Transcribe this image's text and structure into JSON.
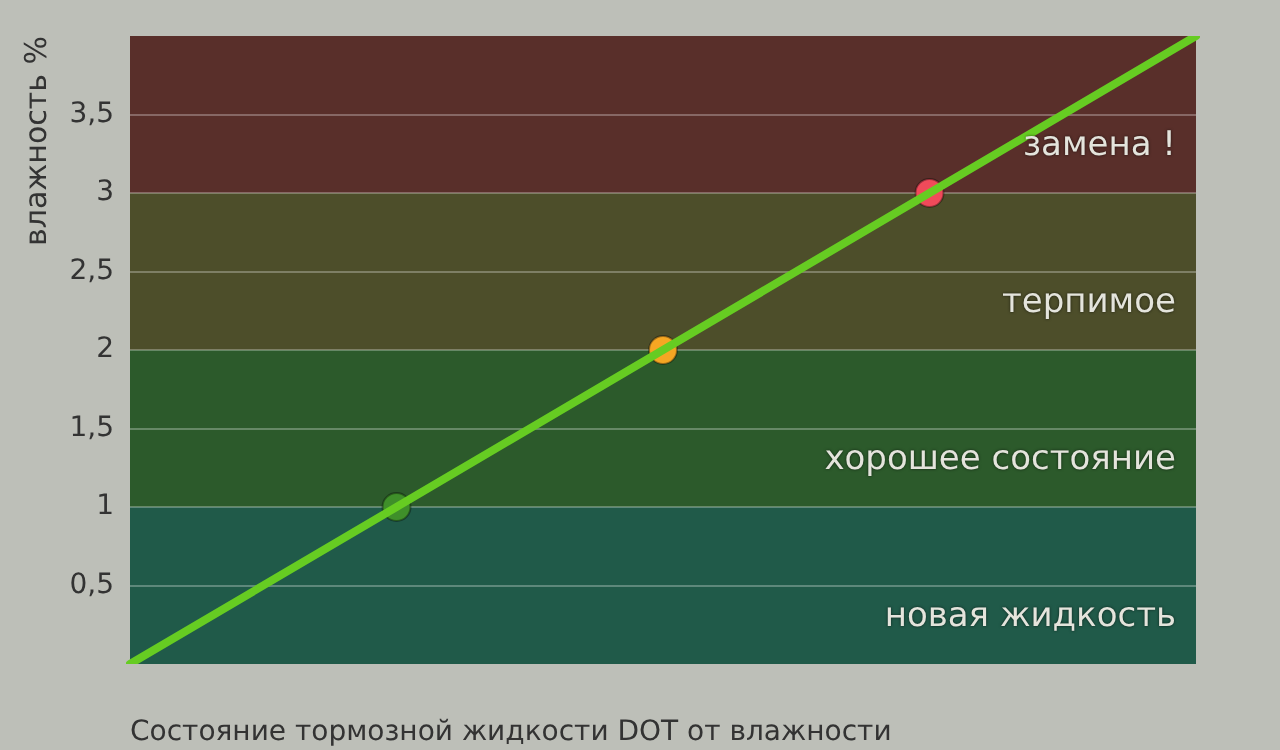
{
  "chart_data": {
    "type": "line",
    "xlabel": "Состояние тормозной жидкости DOT от влажности",
    "ylabel": "влажность %",
    "categories": [
      null,
      null,
      null,
      null,
      null
    ],
    "series": [
      {
        "color": "#66cc22",
        "values": [
          0,
          1,
          2,
          3,
          4
        ],
        "marker": "none"
      },
      {
        "type": "scatter",
        "colors": [
          null,
          "#3f8f2a",
          "#f5a623",
          "#f04a5a",
          null
        ],
        "values": [
          null,
          1,
          2,
          3,
          null
        ],
        "marker": "circle"
      }
    ],
    "ylim": [
      0,
      4
    ],
    "yticks": [
      {
        "value": 0.5,
        "label": "0,5"
      },
      1,
      {
        "value": 1.5,
        "label": "1,5"
      },
      2,
      {
        "value": 2.5,
        "label": "2,5"
      },
      3,
      {
        "value": 3.5,
        "label": "3,5"
      }
    ],
    "grid": "y",
    "tick_labels": "y",
    "bands": [
      {
        "axis": "y",
        "from": 0,
        "to": 1,
        "label": "новая жидкость",
        "color": "#1e6a52"
      },
      {
        "axis": "y",
        "from": 1,
        "to": 2,
        "label": "хорошее состояние",
        "color": "#2e6a2a"
      },
      {
        "axis": "y",
        "from": 2,
        "to": 3,
        "label": "терпимое",
        "color": "#5a5a28"
      },
      {
        "axis": "y",
        "from": 3,
        "to": 4,
        "label": "замена !",
        "color": "#6a3028"
      }
    ]
  }
}
